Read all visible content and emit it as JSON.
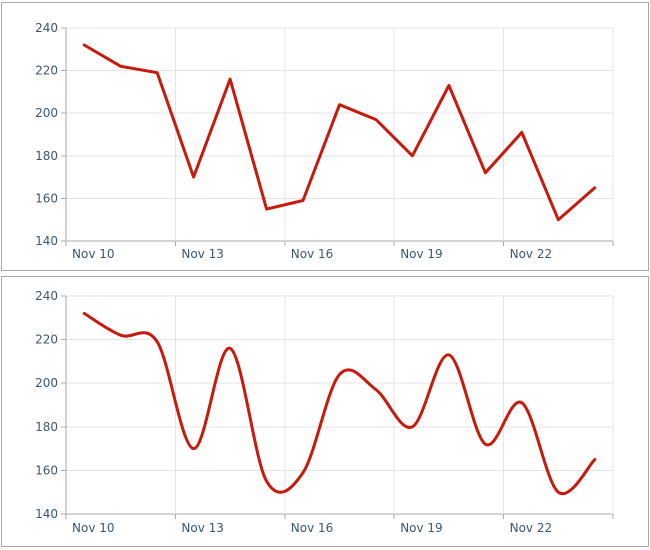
{
  "style": {
    "line_color": "#C8190D",
    "grid_color": "#E4E4E4",
    "axis_color": "#ABABAB",
    "label_color": "#3E576F",
    "panel_border_color": "#A9A9A9",
    "panel_bg": "#FFFFFF"
  },
  "chart_data": [
    {
      "type": "line",
      "smoothed": false,
      "title": "",
      "xlabel": "",
      "ylabel": "",
      "categories": [
        "Nov 10",
        "Nov 11",
        "Nov 12",
        "Nov 13",
        "Nov 14",
        "Nov 15",
        "Nov 16",
        "Nov 17",
        "Nov 18",
        "Nov 19",
        "Nov 20",
        "Nov 21",
        "Nov 22",
        "Nov 23",
        "Nov 24"
      ],
      "values": [
        232,
        222,
        219,
        170,
        216,
        155,
        159,
        204,
        197,
        180,
        213,
        172,
        191,
        150,
        165
      ],
      "ylim": [
        140,
        240
      ],
      "ytick_step": 20,
      "ytick_labels": [
        "140",
        "160",
        "180",
        "200",
        "220",
        "240"
      ],
      "xtick_labels": [
        "Nov 10",
        "Nov 13",
        "Nov 16",
        "Nov 19",
        "Nov 22"
      ],
      "xtick_every": 3,
      "grid": true,
      "legend": "none"
    },
    {
      "type": "line",
      "smoothed": true,
      "title": "",
      "xlabel": "",
      "ylabel": "",
      "categories": [
        "Nov 10",
        "Nov 11",
        "Nov 12",
        "Nov 13",
        "Nov 14",
        "Nov 15",
        "Nov 16",
        "Nov 17",
        "Nov 18",
        "Nov 19",
        "Nov 20",
        "Nov 21",
        "Nov 22",
        "Nov 23",
        "Nov 24"
      ],
      "values": [
        232,
        222,
        219,
        170,
        216,
        155,
        159,
        204,
        197,
        180,
        213,
        172,
        191,
        150,
        165
      ],
      "ylim": [
        140,
        240
      ],
      "ytick_step": 20,
      "ytick_labels": [
        "140",
        "160",
        "180",
        "200",
        "220",
        "240"
      ],
      "xtick_labels": [
        "Nov 10",
        "Nov 13",
        "Nov 16",
        "Nov 19",
        "Nov 22"
      ],
      "xtick_every": 3,
      "grid": true,
      "legend": "none"
    }
  ]
}
